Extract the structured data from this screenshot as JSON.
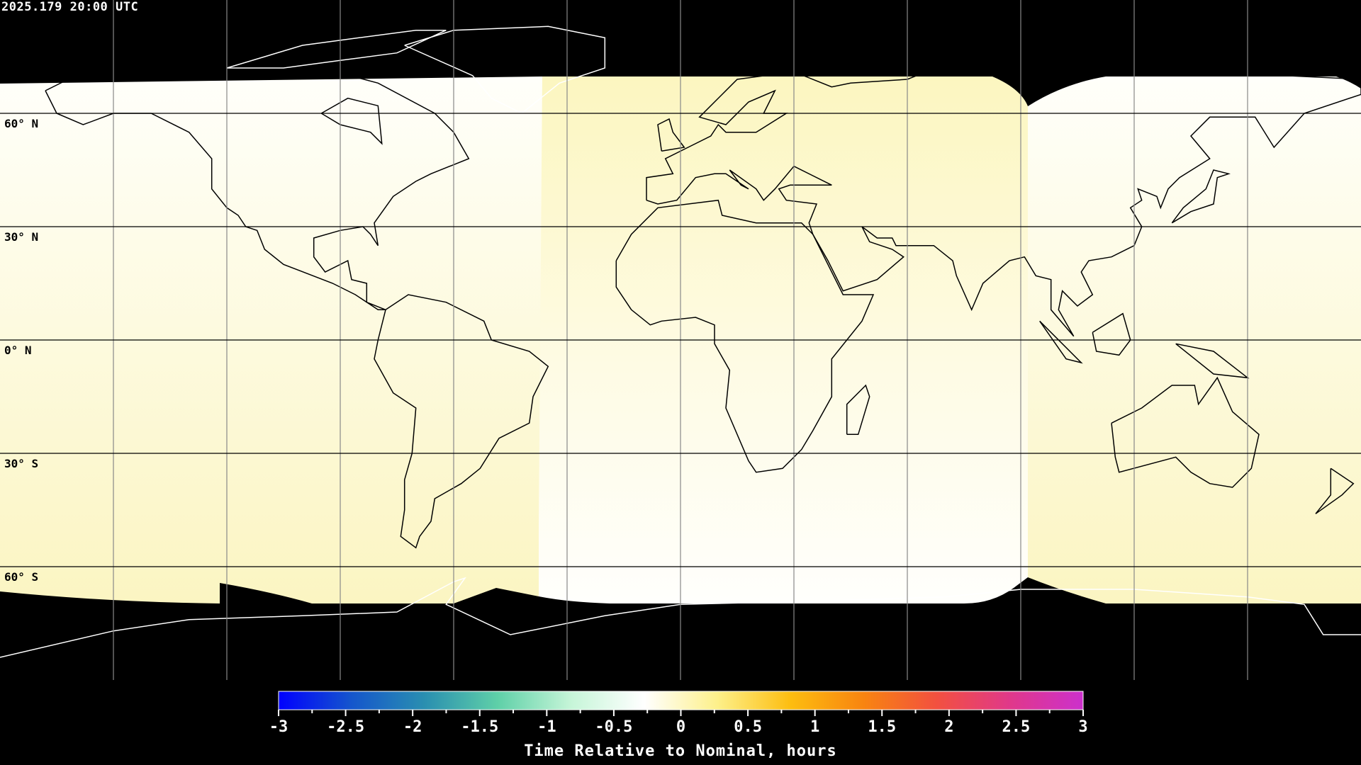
{
  "header": {
    "timestamp": "2025.179 20:00 UTC"
  },
  "map": {
    "projection": "equirectangular",
    "lat_labels": [
      "60° N",
      "30° N",
      "0° N",
      "30° S",
      "60° S"
    ],
    "colors": {
      "yellow": "#fbf6c2",
      "white": "#fffffc",
      "polar": "#000000",
      "grid": "#000000"
    }
  },
  "colorbar": {
    "min": -3,
    "max": 3,
    "tick_labels": [
      "-3",
      "-2.5",
      "-2",
      "-1.5",
      "-1",
      "-0.5",
      "0",
      "0.5",
      "1",
      "1.5",
      "2",
      "2.5",
      "3"
    ],
    "label": "Time Relative to Nominal, hours",
    "colors": [
      "#0000ff",
      "#1556cc",
      "#2a8fb0",
      "#5fd0a8",
      "#c6f5d8",
      "#ffffff",
      "#fdf08a",
      "#fdbd10",
      "#f88410",
      "#f25040",
      "#e0388a",
      "#cc30cc"
    ]
  }
}
